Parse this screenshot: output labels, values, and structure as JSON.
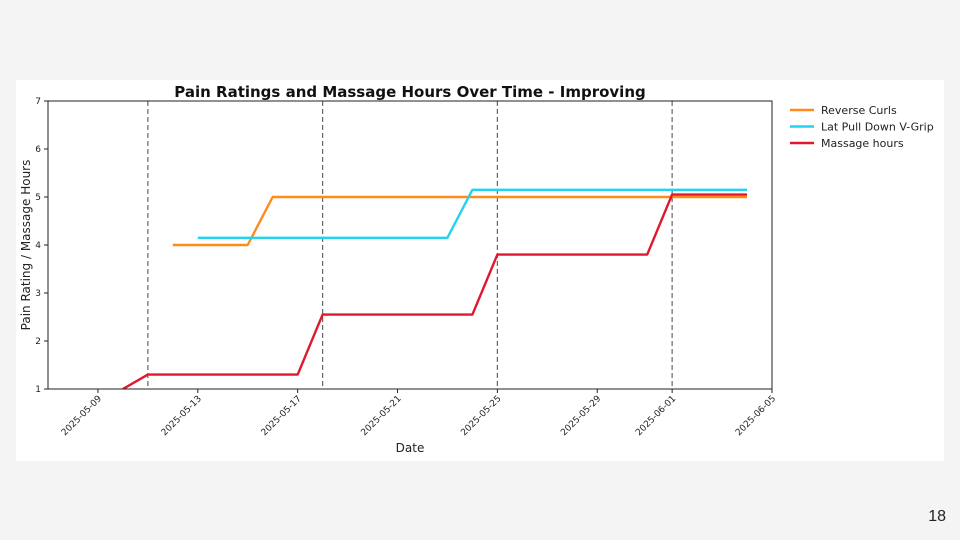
{
  "page": {
    "number": "18"
  },
  "chart_data": {
    "type": "line",
    "title": "Pain Ratings and Massage Hours Over Time - Improving",
    "xlabel": "Date",
    "ylabel": "Pain Rating / Massage Hours",
    "xlim": [
      "2025-05-07",
      "2025-06-05"
    ],
    "ylim": [
      1,
      7
    ],
    "x_ticks": [
      "2025-05-09",
      "2025-05-13",
      "2025-05-17",
      "2025-05-21",
      "2025-05-25",
      "2025-05-29",
      "2025-06-01",
      "2025-06-05"
    ],
    "y_ticks": [
      1,
      2,
      3,
      4,
      5,
      6,
      7
    ],
    "vlines": [
      "2025-05-11",
      "2025-05-18",
      "2025-05-25",
      "2025-06-01"
    ],
    "grid": false,
    "legend": "outside-top-right",
    "series": [
      {
        "name": "Reverse Curls",
        "color": "#ff8c1a",
        "points": [
          [
            "2025-05-12",
            4
          ],
          [
            "2025-05-15",
            4
          ],
          [
            "2025-05-16",
            5
          ],
          [
            "2025-06-04",
            5
          ]
        ]
      },
      {
        "name": "Lat Pull Down V-Grip",
        "color": "#22d3ee",
        "points": [
          [
            "2025-05-13",
            4.15
          ],
          [
            "2025-05-23",
            4.15
          ],
          [
            "2025-05-24",
            5.15
          ],
          [
            "2025-06-04",
            5.15
          ]
        ]
      },
      {
        "name": "Massage hours",
        "color": "#e0182d",
        "points": [
          [
            "2025-05-10",
            1.0
          ],
          [
            "2025-05-11",
            1.3
          ],
          [
            "2025-05-17",
            1.3
          ],
          [
            "2025-05-18",
            2.55
          ],
          [
            "2025-05-24",
            2.55
          ],
          [
            "2025-05-25",
            3.8
          ],
          [
            "2025-05-31",
            3.8
          ],
          [
            "2025-06-01",
            5.05
          ],
          [
            "2025-06-04",
            5.05
          ]
        ]
      }
    ]
  }
}
